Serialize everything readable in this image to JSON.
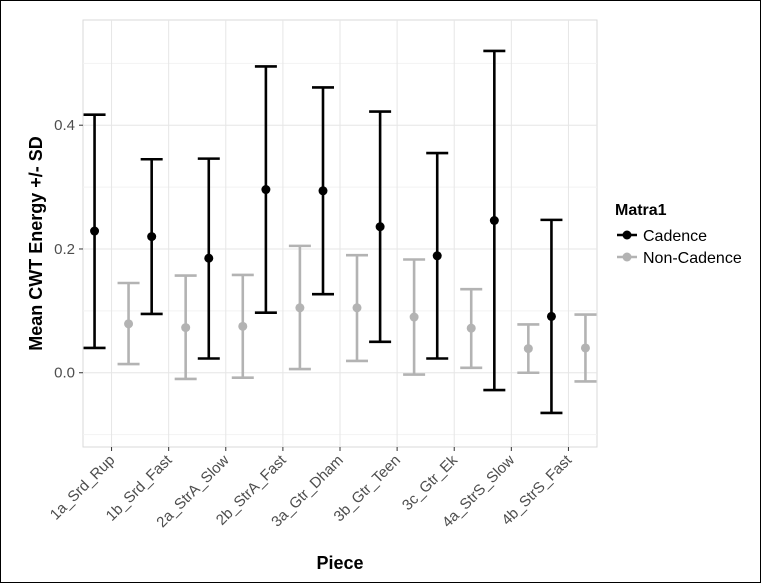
{
  "chart_data": {
    "type": "errorbar",
    "xlabel": "Piece",
    "ylabel": "Mean CWT Energy +/- SD",
    "categories": [
      "1a_Srd_Rup",
      "1b_Srd_Fast",
      "2a_StrA_Slow",
      "2b_StrA_Fast",
      "3a_Gtr_Dham",
      "3b_Gtr_Teen",
      "3c_Gtr_Ek",
      "4a_StrS_Slow",
      "4b_StrS_Fast"
    ],
    "ylim": [
      -0.12,
      0.57
    ],
    "yticks": [
      0.0,
      0.2,
      0.4
    ],
    "ytick_labels": [
      "0.0",
      "0.2",
      "0.4"
    ],
    "grid": true,
    "legend": {
      "title": "Matra1",
      "position": "right"
    },
    "series": [
      {
        "name": "Cadence",
        "color": "#000000",
        "mean": [
          0.229,
          0.22,
          0.185,
          0.296,
          0.294,
          0.236,
          0.189,
          0.246,
          0.091
        ],
        "lower": [
          0.04,
          0.095,
          0.023,
          0.097,
          0.127,
          0.05,
          0.023,
          -0.028,
          -0.065
        ],
        "upper": [
          0.417,
          0.345,
          0.346,
          0.495,
          0.461,
          0.422,
          0.355,
          0.52,
          0.247
        ]
      },
      {
        "name": "Non-Cadence",
        "color": "#b3b3b3",
        "mean": [
          0.079,
          0.073,
          0.075,
          0.105,
          0.105,
          0.09,
          0.072,
          0.039,
          0.04
        ],
        "lower": [
          0.014,
          -0.01,
          -0.008,
          0.006,
          0.019,
          -0.003,
          0.008,
          0.0,
          -0.014
        ],
        "upper": [
          0.145,
          0.157,
          0.158,
          0.205,
          0.19,
          0.183,
          0.135,
          0.078,
          0.094
        ]
      }
    ]
  }
}
